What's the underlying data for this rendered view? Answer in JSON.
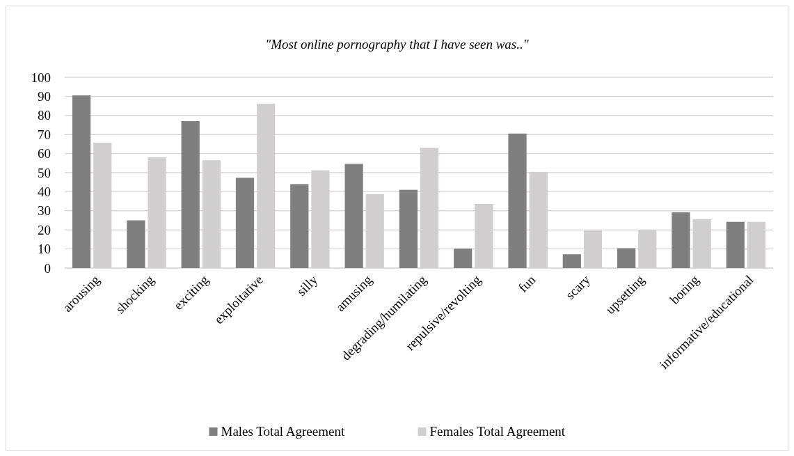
{
  "chart_data": {
    "type": "bar",
    "title": "\"Most online pornography that I have seen was..\"",
    "categories": [
      "arousing",
      "shocking",
      "exciting",
      "exploitative",
      "silly",
      "amusing",
      "degrading/humilating",
      "repulsive/revolting",
      "fun",
      "scary",
      "upsetting",
      "boring",
      "informative/educational"
    ],
    "series": [
      {
        "name": "Males Total Agreement",
        "color": "#7f7f7f",
        "values": [
          90.5,
          25,
          77,
          47.3,
          44,
          54.6,
          41,
          10.2,
          70.5,
          7.2,
          10.4,
          29.2,
          24.2
        ]
      },
      {
        "name": "Females Total Agreement",
        "color": "#d0cece",
        "values": [
          65.7,
          58,
          56.5,
          86.2,
          51.2,
          38.7,
          63,
          33.6,
          50.4,
          19.6,
          20,
          25.6,
          24.2
        ]
      }
    ],
    "ylim": [
      0,
      100
    ],
    "yticks": [
      0,
      10,
      20,
      30,
      40,
      50,
      60,
      70,
      80,
      90,
      100
    ],
    "grid": "y",
    "legend": "bottom"
  }
}
